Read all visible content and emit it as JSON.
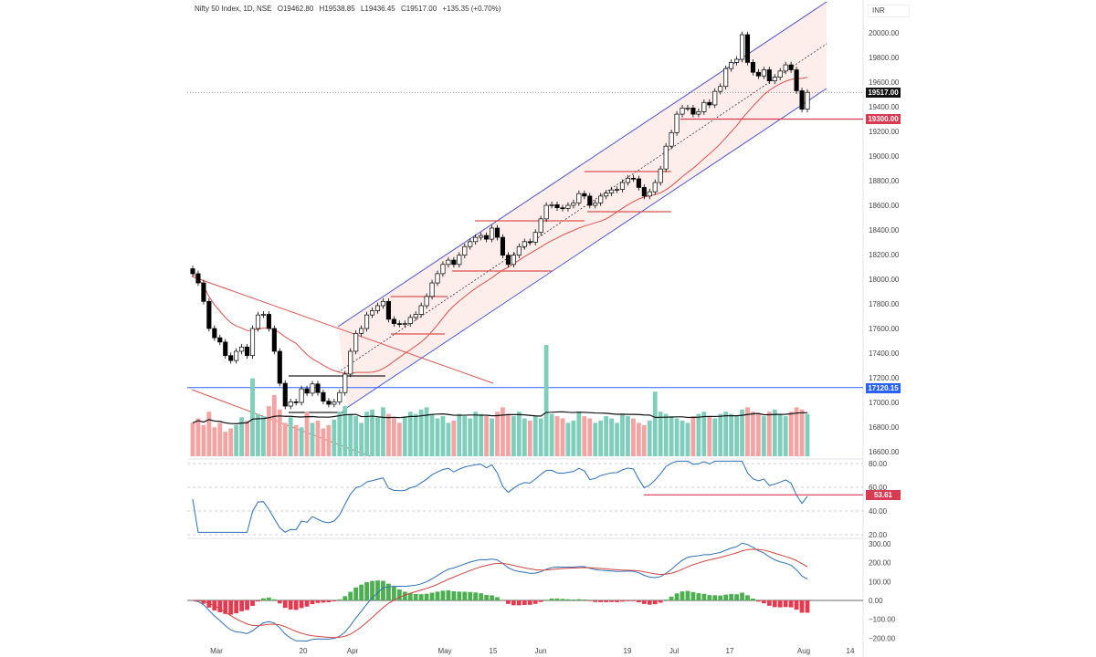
{
  "header": {
    "symbol": "Nifty 50 Index, 1D, NSE",
    "open": "O19462.80",
    "high": "H19538.85",
    "low": "L19436.45",
    "close": "C19517.00",
    "change": "+135.35 (+0.70%)"
  },
  "currency": "INR",
  "markers": {
    "last_price": "19517.00",
    "support": "19300.00",
    "blue_level": "17120.15",
    "rsi_value": "53.61"
  },
  "colors": {
    "up_candle": "#ffffff",
    "down_candle": "#000000",
    "channel": "#4a56c8",
    "ma": "#d9534f",
    "support": "#d83a52",
    "blue_level": "#2962ff",
    "vol_up": "#7fcdbb",
    "vol_down": "#f4a3a3",
    "macd": "#2c6fb7",
    "signal": "#d0453f",
    "hist_up": "#4caf50",
    "hist_down": "#e53950"
  },
  "chart_data": {
    "type": "candlestick",
    "x_ticks": [
      "Mar",
      "20",
      "Apr",
      "May",
      "15",
      "Jun",
      "19",
      "Jul",
      "17",
      "Aug",
      "14"
    ],
    "price_axis": {
      "ticks": [
        20000,
        19800,
        19600,
        19400,
        19200,
        19000,
        18800,
        18600,
        18400,
        18200,
        18000,
        17800,
        17600,
        17400,
        17200,
        17000,
        16800,
        16600
      ],
      "labels": [
        "20000.00",
        "19800.00",
        "19600.00",
        "19400.00",
        "19200.00",
        "19000.00",
        "18800.00",
        "18600.00",
        "18400.00",
        "18200.00",
        "18000.00",
        "17800.00",
        "17600.00",
        "17400.00",
        "17200.00",
        "17000.00",
        "16800.00",
        "16600.00"
      ]
    },
    "rsi_axis": {
      "ticks": [
        80,
        60,
        40,
        20
      ],
      "labels": [
        "80.00",
        "60.00",
        "40.00",
        "20.00"
      ]
    },
    "macd_axis": {
      "ticks": [
        300,
        200,
        100,
        0,
        -100,
        -200
      ],
      "labels": [
        "300.00",
        "200.00",
        "100.00",
        "0.00",
        "−100.00",
        "−200.00"
      ]
    },
    "close": [
      18045,
      17970,
      17820,
      17600,
      17525,
      17490,
      17380,
      17340,
      17415,
      17450,
      17380,
      17600,
      17710,
      17715,
      17600,
      17415,
      17155,
      16970,
      17005,
      17000,
      17110,
      17075,
      17150,
      17080,
      17010,
      16985,
      17005,
      17080,
      17230,
      17415,
      17560,
      17600,
      17710,
      17745,
      17785,
      17820,
      17675,
      17640,
      17635,
      17640,
      17690,
      17715,
      17785,
      17860,
      17970,
      18045,
      18120,
      18155,
      18120,
      18195,
      18265,
      18305,
      18340,
      18355,
      18325,
      18415,
      18340,
      18195,
      18120,
      18195,
      18265,
      18305,
      18300,
      18380,
      18490,
      18600,
      18605,
      18580,
      18575,
      18600,
      18620,
      18695,
      18675,
      18600,
      18620,
      18675,
      18700,
      18725,
      18730,
      18785,
      18820,
      18815,
      18745,
      18675,
      18710,
      18785,
      18895,
      19080,
      19190,
      19340,
      19390,
      19390,
      19340,
      19360,
      19435,
      19415,
      19525,
      19565,
      19710,
      19760,
      19785,
      19985,
      19760,
      19680,
      19650,
      19700,
      19610,
      19640,
      19690,
      19740,
      19700,
      19530,
      19380,
      19517
    ],
    "volume": [
      30,
      34,
      28,
      40,
      26,
      30,
      22,
      25,
      28,
      35,
      32,
      70,
      38,
      36,
      45,
      55,
      42,
      30,
      35,
      28,
      26,
      40,
      30,
      32,
      25,
      28,
      33,
      40,
      45,
      38,
      36,
      30,
      40,
      42,
      35,
      44,
      38,
      34,
      30,
      36,
      40,
      38,
      42,
      44,
      38,
      34,
      36,
      30,
      32,
      38,
      36,
      34,
      40,
      38,
      36,
      34,
      40,
      44,
      38,
      36,
      40,
      34,
      32,
      36,
      34,
      100,
      38,
      36,
      34,
      30,
      32,
      40,
      36,
      34,
      30,
      32,
      36,
      34,
      30,
      38,
      36,
      34,
      30,
      28,
      32,
      58,
      40,
      38,
      36,
      34,
      32,
      30,
      36,
      38,
      40,
      36,
      34,
      38,
      40,
      38,
      36,
      42,
      44,
      40,
      38,
      36,
      40,
      42,
      38,
      36,
      40,
      44,
      42,
      38
    ],
    "horizontal_levels": [
      19300,
      17120.15
    ],
    "rsi_level": 53.61
  }
}
